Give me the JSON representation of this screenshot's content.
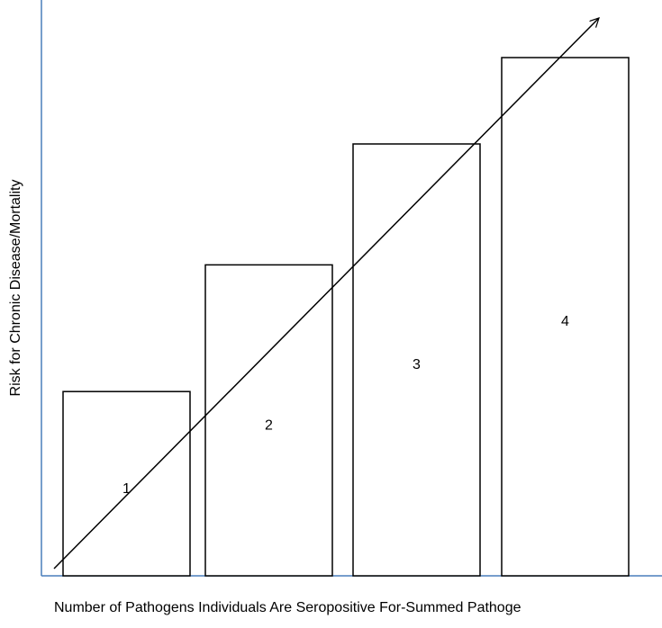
{
  "chart_data": {
    "type": "bar",
    "y_label": "Risk for Chronic Disease/Mortality",
    "x_label": "Number of Pathogens Individuals Are Seropositive For-Summed Pathoge",
    "categories": [
      "1",
      "2",
      "3",
      "4"
    ],
    "values": [
      32,
      54,
      75,
      90
    ],
    "color": "#ffffff",
    "ylim": [
      0,
      100
    ]
  }
}
